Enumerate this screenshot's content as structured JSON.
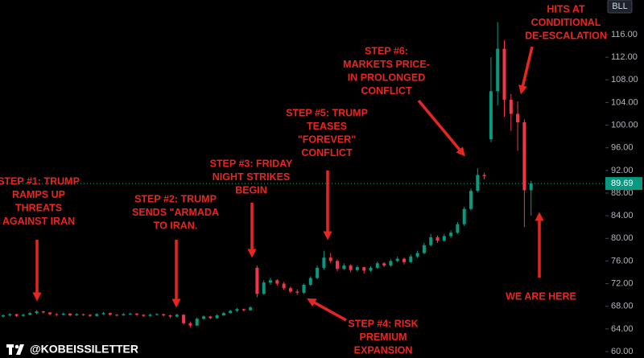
{
  "chart_data": {
    "type": "candlestick",
    "ticker": "BLL",
    "watermark": "@KOBEISSILETTER",
    "last_price": 89.69,
    "up_color": "#089981",
    "down_color": "#f23645",
    "ylim": [
      60,
      116.6
    ],
    "yticks": [
      {
        "value": 60,
        "label": "60.00"
      },
      {
        "value": 64,
        "label": "64.00"
      },
      {
        "value": 68,
        "label": "68.00"
      },
      {
        "value": 72,
        "label": "72.00"
      },
      {
        "value": 76,
        "label": "76.00"
      },
      {
        "value": 80,
        "label": "80.00"
      },
      {
        "value": 84,
        "label": "84.00"
      },
      {
        "value": 88,
        "label": "88.00"
      },
      {
        "value": 92,
        "label": "92.00"
      },
      {
        "value": 96,
        "label": "96.00"
      },
      {
        "value": 100,
        "label": "100.00"
      },
      {
        "value": 104,
        "label": "104.00"
      },
      {
        "value": 108,
        "label": "108.00"
      },
      {
        "value": 112,
        "label": "112.00"
      },
      {
        "value": 116,
        "label": "116.00"
      }
    ],
    "candles": [
      [
        66.2,
        66.6,
        66.0,
        66.4
      ],
      [
        66.4,
        66.8,
        66.2,
        66.6
      ],
      [
        66.6,
        66.7,
        66.1,
        66.3
      ],
      [
        66.3,
        66.7,
        66.2,
        66.5
      ],
      [
        66.5,
        67.0,
        66.4,
        66.8
      ],
      [
        66.8,
        67.3,
        66.6,
        67.1
      ],
      [
        67.1,
        67.2,
        66.7,
        66.9
      ],
      [
        66.9,
        67.0,
        66.4,
        66.6
      ],
      [
        66.6,
        66.8,
        66.3,
        66.5
      ],
      [
        66.5,
        66.9,
        66.4,
        66.7
      ],
      [
        66.7,
        66.8,
        66.2,
        66.4
      ],
      [
        66.4,
        66.8,
        66.3,
        66.6
      ],
      [
        66.6,
        66.7,
        66.3,
        66.5
      ],
      [
        66.5,
        66.6,
        66.1,
        66.3
      ],
      [
        66.3,
        66.8,
        66.2,
        66.6
      ],
      [
        66.6,
        67.0,
        66.5,
        66.8
      ],
      [
        66.8,
        66.9,
        66.3,
        66.5
      ],
      [
        66.5,
        66.6,
        66.2,
        66.4
      ],
      [
        66.4,
        66.8,
        66.3,
        66.6
      ],
      [
        66.6,
        66.9,
        66.5,
        66.7
      ],
      [
        66.7,
        66.8,
        66.3,
        66.5
      ],
      [
        66.5,
        66.6,
        66.1,
        66.3
      ],
      [
        66.3,
        66.7,
        66.2,
        66.5
      ],
      [
        66.5,
        66.8,
        66.4,
        66.6
      ],
      [
        66.6,
        66.7,
        66.2,
        66.4
      ],
      [
        66.4,
        66.5,
        65.9,
        66.2
      ],
      [
        66.2,
        66.7,
        66.0,
        66.5
      ],
      [
        66.5,
        66.6,
        64.8,
        65.0
      ],
      [
        65.0,
        65.3,
        64.2,
        64.6
      ],
      [
        64.6,
        66.0,
        64.5,
        65.8
      ],
      [
        65.8,
        66.4,
        65.6,
        66.2
      ],
      [
        66.2,
        66.3,
        65.7,
        65.9
      ],
      [
        65.9,
        66.6,
        65.8,
        66.4
      ],
      [
        66.4,
        67.0,
        66.3,
        66.8
      ],
      [
        66.8,
        67.4,
        66.7,
        67.2
      ],
      [
        67.2,
        67.7,
        67.0,
        67.5
      ],
      [
        67.5,
        67.6,
        67.1,
        67.3
      ],
      [
        67.3,
        68.0,
        67.2,
        67.8
      ],
      [
        74.8,
        75.2,
        69.6,
        70.2
      ],
      [
        70.2,
        72.6,
        70.0,
        72.2
      ],
      [
        72.2,
        73.0,
        71.8,
        72.6
      ],
      [
        72.6,
        72.8,
        71.6,
        72.0
      ],
      [
        72.0,
        72.3,
        70.9,
        71.2
      ],
      [
        71.2,
        71.5,
        70.3,
        70.6
      ],
      [
        70.6,
        71.0,
        70.0,
        70.4
      ],
      [
        70.4,
        72.0,
        70.2,
        71.8
      ],
      [
        71.8,
        73.3,
        71.6,
        73.0
      ],
      [
        73.0,
        75.2,
        72.8,
        74.8
      ],
      [
        74.8,
        77.8,
        74.5,
        76.6
      ],
      [
        76.6,
        77.4,
        75.6,
        76.0
      ],
      [
        76.0,
        76.3,
        74.2,
        74.6
      ],
      [
        74.6,
        75.6,
        74.4,
        75.2
      ],
      [
        75.2,
        75.4,
        74.0,
        74.4
      ],
      [
        74.4,
        75.2,
        74.1,
        74.9
      ],
      [
        74.9,
        75.0,
        73.8,
        74.3
      ],
      [
        74.3,
        75.1,
        74.1,
        74.8
      ],
      [
        74.8,
        75.9,
        74.6,
        75.6
      ],
      [
        75.6,
        75.8,
        74.9,
        75.2
      ],
      [
        75.2,
        76.3,
        75.0,
        76.0
      ],
      [
        76.0,
        76.8,
        75.8,
        76.4
      ],
      [
        76.4,
        76.6,
        75.4,
        75.8
      ],
      [
        75.8,
        77.1,
        75.6,
        76.8
      ],
      [
        76.8,
        77.8,
        76.5,
        77.4
      ],
      [
        77.4,
        79.2,
        77.2,
        78.8
      ],
      [
        78.8,
        80.8,
        78.6,
        80.2
      ],
      [
        80.2,
        80.5,
        79.2,
        79.6
      ],
      [
        79.6,
        80.8,
        79.4,
        80.4
      ],
      [
        80.4,
        81.4,
        80.1,
        81.0
      ],
      [
        81.0,
        82.9,
        80.8,
        82.5
      ],
      [
        82.5,
        85.6,
        82.2,
        85.2
      ],
      [
        85.2,
        88.8,
        84.9,
        88.4
      ],
      [
        88.4,
        92.4,
        88.1,
        91.2
      ],
      [
        91.2,
        91.6,
        90.4,
        91.0
      ],
      [
        97.5,
        112.0,
        97.0,
        106.0
      ],
      [
        106.0,
        118.2,
        103.5,
        113.5
      ],
      [
        113.5,
        115.0,
        101.5,
        104.5
      ],
      [
        104.5,
        105.5,
        99.0,
        102.0
      ],
      [
        102.0,
        104.2,
        95.5,
        100.5
      ],
      [
        100.5,
        101.0,
        82.0,
        88.5
      ],
      [
        88.5,
        90.2,
        84.0,
        89.69
      ]
    ],
    "annotations": [
      [
        "STEP #1: TRUMP",
        "RAMPS UP",
        "THREATS",
        "AGAINST IRAN"
      ],
      [
        "STEP #2: TRUMP",
        "SENDS \"ARMADA",
        "TO IRAN."
      ],
      [
        "STEP #3: FRIDAY",
        "NIGHT STRIKES",
        "BEGIN"
      ],
      [
        "STEP #4: RISK",
        "PREMIUM",
        "EXPANSION"
      ],
      [
        "STEP #5: TRUMP",
        "TEASES",
        "\"FOREVER\"",
        "CONFLICT"
      ],
      [
        "STEP #6:",
        "MARKETS PRICE-",
        "IN PROLONGED",
        "CONFLICT"
      ],
      [
        "HITS AT",
        "CONDITIONAL",
        "DE-ESCALATION"
      ],
      [
        "WE ARE HERE"
      ]
    ]
  }
}
